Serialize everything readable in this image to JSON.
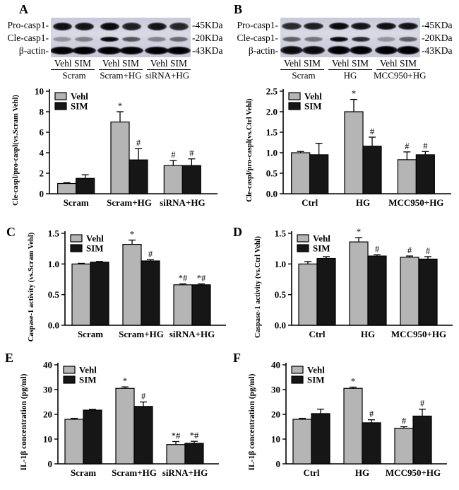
{
  "colors": {
    "vehl_bar": "#b5b5b5",
    "sim_bar": "#161616",
    "axis": "#000000",
    "blot_bg": "#ccced9"
  },
  "legend": {
    "vehl": "Vehl",
    "sim": "SIM"
  },
  "panels": {
    "letters": [
      "A",
      "B",
      "C",
      "D",
      "E",
      "F"
    ]
  },
  "blots": [
    {
      "rows": [
        {
          "label": "Pro-casp1-",
          "kda": "-45KDa",
          "band_h": 11,
          "band_w": 27,
          "intensities": [
            0.92,
            0.9,
            0.95,
            0.85,
            0.9,
            0.82
          ]
        },
        {
          "label": "Cle-casp1-",
          "kda": "-20KDa",
          "band_h": 7,
          "band_w": 26,
          "intensities": [
            0.3,
            0.4,
            0.95,
            0.6,
            0.38,
            0.5
          ]
        },
        {
          "label": "β-actin-",
          "kda": "-43KDa",
          "band_h": 11,
          "band_w": 34,
          "intensities": [
            1,
            1,
            1,
            1,
            1,
            1
          ]
        }
      ],
      "pair_label": "Vehl SIM",
      "groups": [
        "Scram",
        "Scram+HG",
        "siRNA+HG"
      ]
    },
    {
      "rows": [
        {
          "label": "Pro-casp1-",
          "kda": "-45KDa",
          "band_h": 10,
          "band_w": 28,
          "intensities": [
            0.8,
            0.85,
            0.95,
            0.9,
            0.92,
            0.9
          ]
        },
        {
          "label": "Cle-casp1-",
          "kda": "-20KDa",
          "band_h": 7,
          "band_w": 26,
          "intensities": [
            0.55,
            0.45,
            0.95,
            0.8,
            0.3,
            0.55
          ]
        },
        {
          "label": "β-actin-",
          "kda": "-43KDa",
          "band_h": 12,
          "band_w": 32,
          "intensities": [
            0.95,
            0.95,
            1,
            1,
            1,
            1
          ]
        }
      ],
      "pair_label": "Vehl SIM",
      "groups": [
        "Scram",
        "HG",
        "MCC950+HG"
      ]
    }
  ],
  "chart_data": [
    {
      "panel": "A",
      "type": "bar",
      "title": "",
      "ylabel": "Cle-caspl/pro-caspl(vs.Scram Vehl)",
      "xlabel": "",
      "grid": false,
      "legend_position": "top-left",
      "categories": [
        "Scram",
        "Scram+HG",
        "siRNA+HG"
      ],
      "ylim": [
        0,
        10
      ],
      "yticks": [
        0,
        2,
        4,
        6,
        8,
        10
      ],
      "ytick_labels": [
        "0",
        "2",
        "4",
        "6",
        "8",
        "10"
      ],
      "series": [
        {
          "name": "Vehl",
          "values": [
            1.0,
            7.0,
            2.75
          ],
          "errors": [
            0.08,
            1.0,
            0.5
          ],
          "annotations": [
            "",
            "*",
            "#"
          ]
        },
        {
          "name": "SIM",
          "values": [
            1.5,
            3.3,
            2.75
          ],
          "errors": [
            0.35,
            1.1,
            0.65
          ],
          "annotations": [
            "",
            "#",
            "#"
          ]
        }
      ]
    },
    {
      "panel": "B",
      "type": "bar",
      "title": "",
      "ylabel": "Cle-caspl/pro-caspl(vs.Ctrl Vehl)",
      "xlabel": "",
      "grid": false,
      "legend_position": "top-left",
      "categories": [
        "Ctrl",
        "HG",
        "MCC950+HG"
      ],
      "ylim": [
        0,
        2.5
      ],
      "yticks": [
        0,
        0.5,
        1.0,
        1.5,
        2.0,
        2.5
      ],
      "ytick_labels": [
        "0.0",
        "0.5",
        "1.0",
        "1.5",
        "2.0",
        "2.5"
      ],
      "series": [
        {
          "name": "Vehl",
          "values": [
            1.0,
            2.0,
            0.83
          ],
          "errors": [
            0.03,
            0.3,
            0.19
          ],
          "annotations": [
            "",
            "*",
            "#"
          ]
        },
        {
          "name": "SIM",
          "values": [
            0.95,
            1.16,
            0.95
          ],
          "errors": [
            0.28,
            0.22,
            0.08
          ],
          "annotations": [
            "",
            "#",
            "#"
          ]
        }
      ]
    },
    {
      "panel": "C",
      "type": "bar",
      "title": "",
      "ylabel": "Caspase-1 activity (vs.Scram Vehl)",
      "xlabel": "",
      "grid": false,
      "legend_position": "top-left",
      "categories": [
        "Scram",
        "Scram+HG",
        "siRNA+HG"
      ],
      "ylim": [
        0,
        1.5
      ],
      "yticks": [
        0,
        0.5,
        1.0,
        1.5
      ],
      "ytick_labels": [
        "0.0",
        "0.5",
        "1.0",
        "1.5"
      ],
      "series": [
        {
          "name": "Vehl",
          "values": [
            1.0,
            1.32,
            0.66
          ],
          "errors": [
            0.01,
            0.07,
            0.015
          ],
          "annotations": [
            "",
            "*",
            "*#"
          ]
        },
        {
          "name": "SIM",
          "values": [
            1.03,
            1.05,
            0.66
          ],
          "errors": [
            0.01,
            0.02,
            0.015
          ],
          "annotations": [
            "",
            "#",
            "*#"
          ]
        }
      ]
    },
    {
      "panel": "D",
      "type": "bar",
      "title": "",
      "ylabel": "Caspase-1 activity (vs.Ctrl Vehl)",
      "xlabel": "",
      "grid": false,
      "legend_position": "top-left",
      "categories": [
        "Ctrl",
        "HG",
        "MCC950+HG"
      ],
      "ylim": [
        0,
        1.5
      ],
      "yticks": [
        0,
        0.5,
        1.0,
        1.5
      ],
      "ytick_labels": [
        "0.0",
        "0.5",
        "1.0",
        "1.5"
      ],
      "series": [
        {
          "name": "Vehl",
          "values": [
            1.0,
            1.36,
            1.11
          ],
          "errors": [
            0.04,
            0.07,
            0.02
          ],
          "annotations": [
            "",
            "*",
            "#"
          ]
        },
        {
          "name": "SIM",
          "values": [
            1.09,
            1.13,
            1.08
          ],
          "errors": [
            0.03,
            0.02,
            0.04
          ],
          "annotations": [
            "",
            "#",
            "#"
          ]
        }
      ]
    },
    {
      "panel": "E",
      "type": "bar",
      "title": "",
      "ylabel": "IL-1β  concentration (pg/ml)",
      "xlabel": "",
      "grid": false,
      "legend_position": "top-left",
      "categories": [
        "Scram",
        "Scram+HG",
        "siRNA+HG"
      ],
      "ylim": [
        0,
        40
      ],
      "yticks": [
        0,
        10,
        20,
        30,
        40
      ],
      "ytick_labels": [
        "0",
        "10",
        "20",
        "30",
        "40"
      ],
      "series": [
        {
          "name": "Vehl",
          "values": [
            18,
            30.5,
            7.8
          ],
          "errors": [
            0.4,
            0.6,
            1.2
          ],
          "annotations": [
            "",
            "*",
            "*#"
          ]
        },
        {
          "name": "SIM",
          "values": [
            21.7,
            23.2,
            8.3
          ],
          "errors": [
            0.3,
            1.8,
            0.8
          ],
          "annotations": [
            "",
            "#",
            "*#"
          ]
        }
      ]
    },
    {
      "panel": "F",
      "type": "bar",
      "title": "",
      "ylabel": "IL-1β  concentration (pg/ml)",
      "xlabel": "",
      "grid": false,
      "legend_position": "top-left",
      "categories": [
        "Ctrl",
        "HG",
        "MCC950+HG"
      ],
      "ylim": [
        0,
        40
      ],
      "yticks": [
        0,
        10,
        20,
        30,
        40
      ],
      "ytick_labels": [
        "0",
        "10",
        "20",
        "30",
        "40"
      ],
      "series": [
        {
          "name": "Vehl",
          "values": [
            18,
            30.5,
            14.4
          ],
          "errors": [
            0.4,
            0.5,
            0.6
          ],
          "annotations": [
            "",
            "*",
            "#"
          ]
        },
        {
          "name": "SIM",
          "values": [
            20.3,
            16.6,
            19.3
          ],
          "errors": [
            1.8,
            1.2,
            2.8
          ],
          "annotations": [
            "",
            "#",
            "#"
          ]
        }
      ]
    }
  ]
}
